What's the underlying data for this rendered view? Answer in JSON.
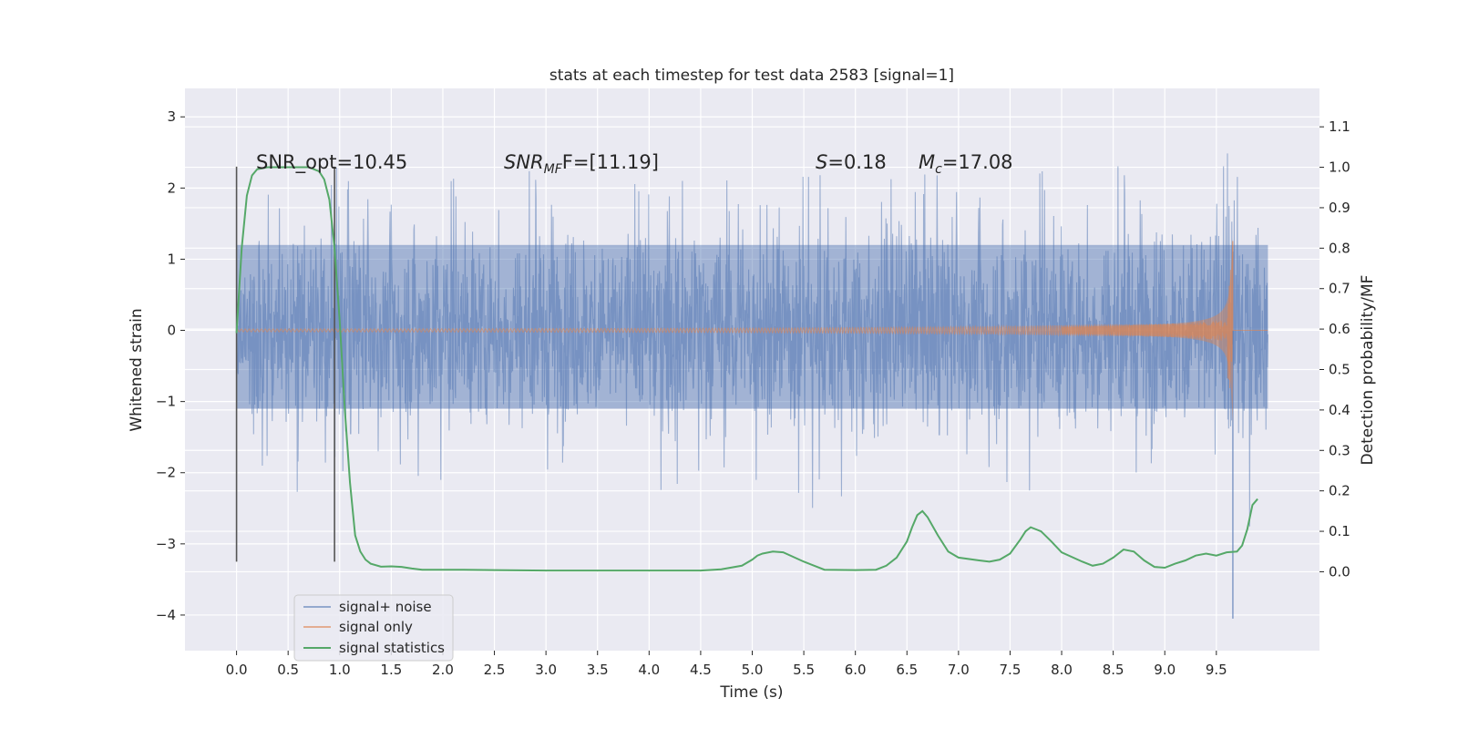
{
  "chart_data": {
    "type": "line",
    "title": "stats at each timestep for test data 2583 [signal=1]",
    "xlabel": "Time (s)",
    "ylabel": "Whitened strain",
    "y2label": "Detection probability/MF",
    "xlim": [
      -0.5,
      10.5
    ],
    "ylim": [
      -4.5,
      3.4
    ],
    "y2lim": [
      -0.195,
      1.195
    ],
    "grid": true,
    "legend_position": "lower-left",
    "x_ticks": [
      "0.0",
      "0.5",
      "1.0",
      "1.5",
      "2.0",
      "2.5",
      "3.0",
      "3.5",
      "4.0",
      "4.5",
      "5.0",
      "5.5",
      "6.0",
      "6.5",
      "7.0",
      "7.5",
      "8.0",
      "8.5",
      "9.0",
      "9.5"
    ],
    "x_tick_values": [
      0,
      0.5,
      1,
      1.5,
      2,
      2.5,
      3,
      3.5,
      4,
      4.5,
      5,
      5.5,
      6,
      6.5,
      7,
      7.5,
      8,
      8.5,
      9,
      9.5
    ],
    "y_ticks": [
      "3",
      "2",
      "1",
      "0",
      "−1",
      "−2",
      "−3",
      "−4"
    ],
    "y_tick_values": [
      3,
      2,
      1,
      0,
      -1,
      -2,
      -3,
      -4
    ],
    "y2_ticks": [
      "1.1",
      "1.0",
      "0.9",
      "0.8",
      "0.7",
      "0.6",
      "0.5",
      "0.4",
      "0.3",
      "0.2",
      "0.1",
      "0.0"
    ],
    "y2_tick_values": [
      1.1,
      1.0,
      0.9,
      0.8,
      0.7,
      0.6,
      0.5,
      0.4,
      0.3,
      0.2,
      0.1,
      0.0
    ],
    "annotations": {
      "snr_opt": "SNR_opt=10.45",
      "snr_mf_var": "SNR",
      "snr_mf_sub": "MF",
      "snr_mf_rest": "F=[11.19]",
      "s_var": "S",
      "s_rest": "=0.18",
      "mc_var": "M",
      "mc_sub": "c",
      "mc_rest": "=17.08"
    },
    "vlines_x": [
      0.0,
      0.95
    ],
    "vline_range": [
      -3.25,
      2.3
    ],
    "series": [
      {
        "name": "signal+ noise",
        "color": "#4c72b0",
        "axis": "left",
        "envelope": {
          "x": [
            0.0,
            1.0,
            2.0,
            3.0,
            4.0,
            5.0,
            6.0,
            7.0,
            8.0,
            9.0,
            9.7,
            10.0
          ],
          "upper": [
            2.0,
            2.3,
            2.2,
            2.3,
            2.2,
            2.2,
            2.3,
            2.4,
            2.3,
            2.4,
            2.5,
            1.3
          ],
          "lower": [
            -2.0,
            -2.5,
            -2.3,
            -2.4,
            -2.4,
            -2.5,
            -2.6,
            -2.4,
            -2.5,
            -2.4,
            -4.05,
            -1.4
          ]
        }
      },
      {
        "name": "signal only",
        "color": "#dd8452",
        "axis": "left",
        "chirp_end": 9.66,
        "amplitude_peak": 1.3
      },
      {
        "name": "signal statistics",
        "color": "#55a868",
        "axis": "right",
        "x": [
          0.0,
          0.05,
          0.1,
          0.15,
          0.2,
          0.3,
          0.5,
          0.7,
          0.8,
          0.85,
          0.9,
          0.95,
          1.0,
          1.05,
          1.1,
          1.15,
          1.2,
          1.25,
          1.3,
          1.4,
          1.5,
          1.6,
          1.7,
          1.8,
          2.0,
          2.2,
          2.5,
          3.0,
          3.5,
          4.0,
          4.5,
          4.7,
          4.9,
          5.0,
          5.05,
          5.1,
          5.2,
          5.3,
          5.5,
          5.7,
          6.0,
          6.2,
          6.3,
          6.4,
          6.5,
          6.55,
          6.6,
          6.65,
          6.7,
          6.8,
          6.9,
          7.0,
          7.2,
          7.3,
          7.4,
          7.5,
          7.6,
          7.65,
          7.7,
          7.8,
          7.9,
          8.0,
          8.2,
          8.3,
          8.4,
          8.5,
          8.6,
          8.7,
          8.8,
          8.9,
          9.0,
          9.1,
          9.2,
          9.3,
          9.4,
          9.5,
          9.6,
          9.7,
          9.75,
          9.8,
          9.85,
          9.9
        ],
        "y": [
          0.59,
          0.8,
          0.93,
          0.98,
          0.995,
          1.0,
          1.0,
          1.0,
          0.99,
          0.97,
          0.92,
          0.8,
          0.62,
          0.4,
          0.22,
          0.09,
          0.05,
          0.03,
          0.02,
          0.0125,
          0.0135,
          0.012,
          0.008,
          0.005,
          0.005,
          0.005,
          0.004,
          0.003,
          0.003,
          0.003,
          0.003,
          0.006,
          0.015,
          0.03,
          0.04,
          0.045,
          0.05,
          0.048,
          0.025,
          0.005,
          0.004,
          0.005,
          0.015,
          0.035,
          0.075,
          0.11,
          0.14,
          0.15,
          0.135,
          0.09,
          0.05,
          0.035,
          0.028,
          0.025,
          0.03,
          0.045,
          0.08,
          0.1,
          0.11,
          0.1,
          0.075,
          0.048,
          0.025,
          0.015,
          0.02,
          0.035,
          0.055,
          0.05,
          0.028,
          0.012,
          0.01,
          0.02,
          0.028,
          0.04,
          0.045,
          0.04,
          0.048,
          0.05,
          0.065,
          0.105,
          0.165,
          0.18
        ]
      }
    ]
  }
}
